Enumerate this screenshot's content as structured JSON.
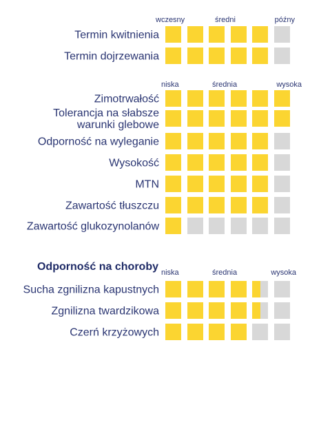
{
  "colors": {
    "filled": "#fbd531",
    "empty": "#d8d8d8",
    "text": "#2a3572"
  },
  "scale_max": 6,
  "group1": {
    "scale": {
      "low": "wczesny",
      "mid": "średni",
      "high": "późny"
    },
    "traits": [
      {
        "label": "Termin kwitnienia",
        "level": 5
      },
      {
        "label": "Termin dojrzewania",
        "level": 5
      }
    ]
  },
  "group2": {
    "scale": {
      "low": "niska",
      "mid": "średnia",
      "high": "wysoka"
    },
    "traits": [
      {
        "label": "Zimotrwałość",
        "level": 6
      },
      {
        "label": "Tolerancja na słabsze\nwarunki glebowe",
        "level": 6
      },
      {
        "label": "Odporność na wyleganie",
        "level": 5
      },
      {
        "label": "Wysokość",
        "level": 5
      },
      {
        "label": "MTN",
        "level": 5
      },
      {
        "label": "Zawartość tłuszczu",
        "level": 5
      },
      {
        "label": "Zawartość glukozynolanów",
        "level": 1
      }
    ]
  },
  "group3": {
    "title": "Odporność na choroby",
    "scale": {
      "low": "niska",
      "mid": "średnia",
      "high": "wysoka"
    },
    "traits": [
      {
        "label": "Sucha zgnilizna kapustnych",
        "level": 4.5
      },
      {
        "label": "Zgnilizna twardzikowa",
        "level": 4.5
      },
      {
        "label": "Czerń krzyżowych",
        "level": 4
      }
    ]
  }
}
